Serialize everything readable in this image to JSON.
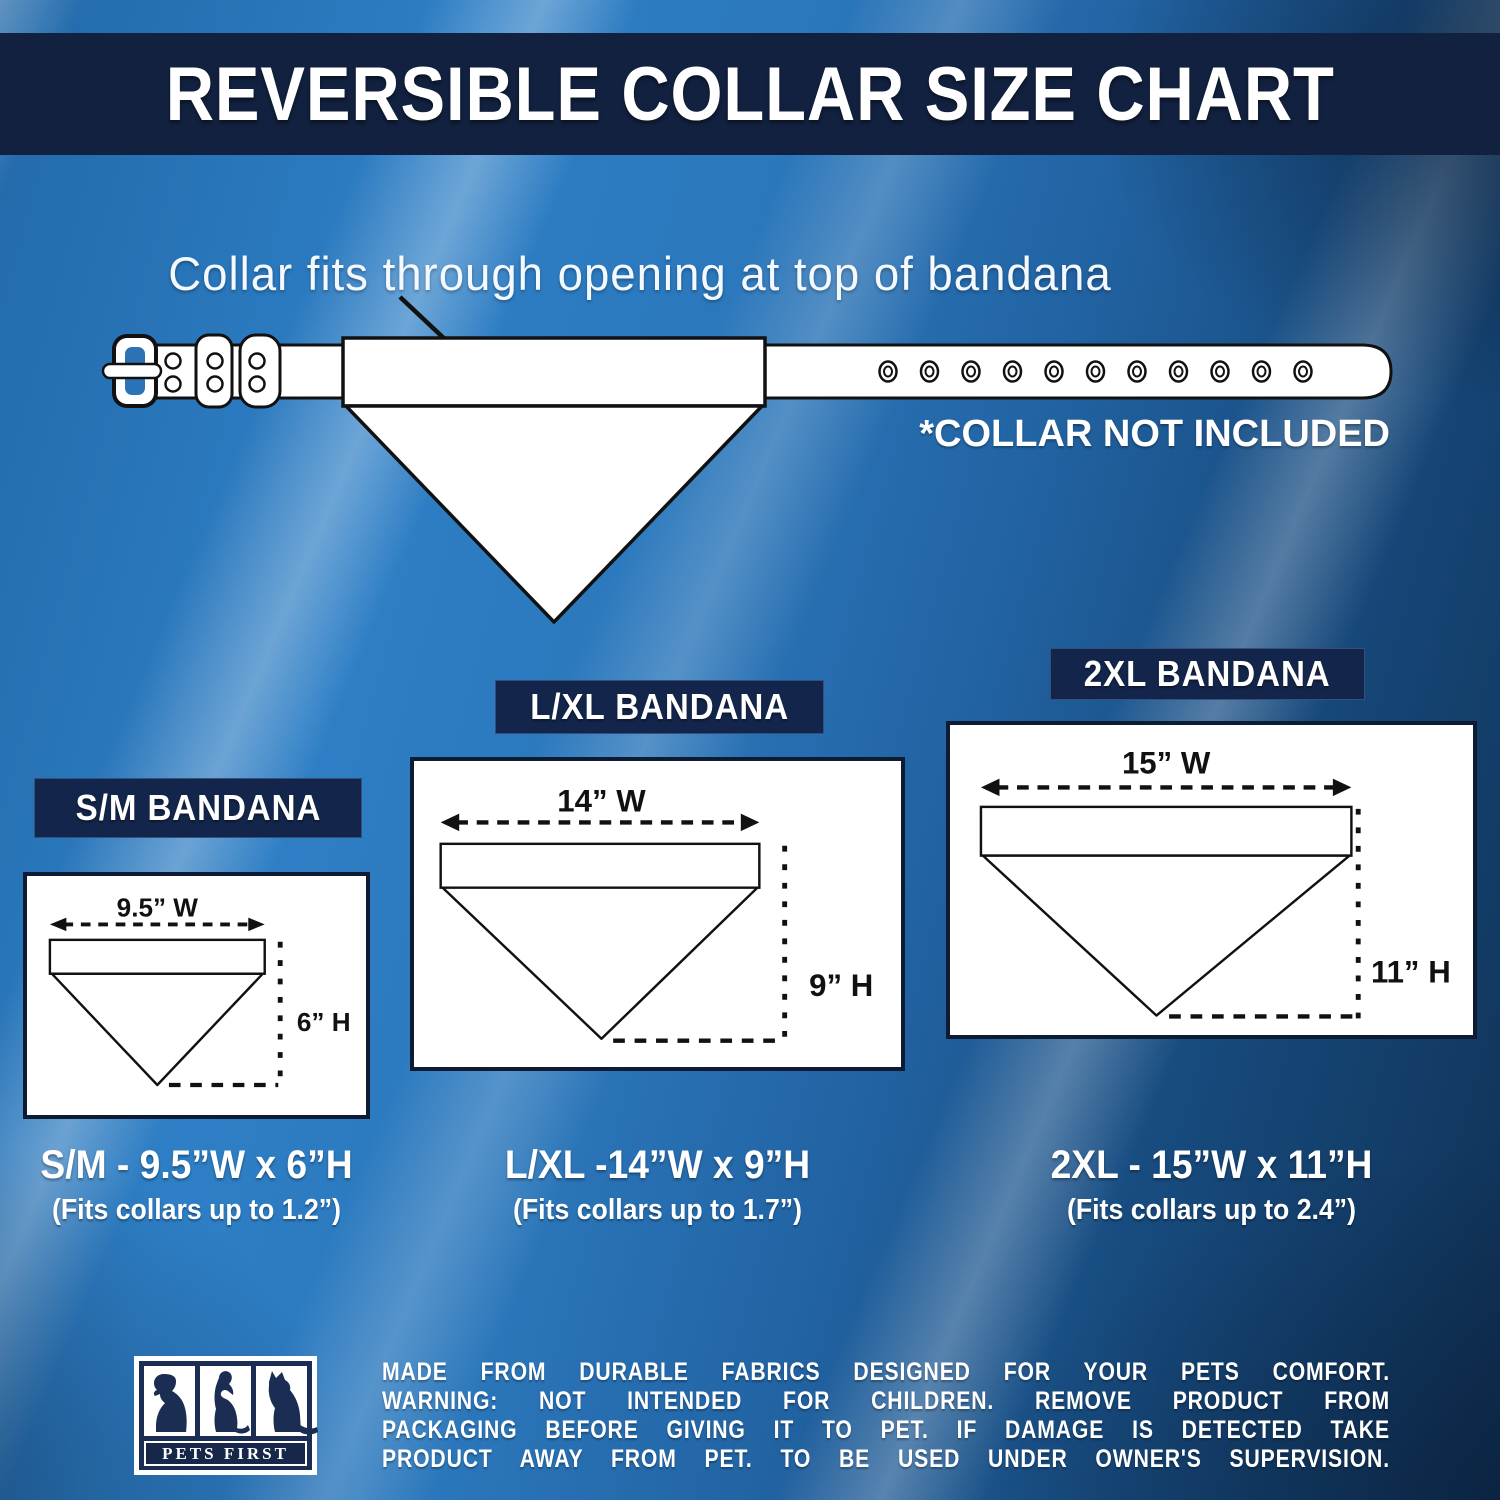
{
  "title": "REVERSIBLE COLLAR SIZE CHART",
  "collar_diagram": {
    "caption": "Collar fits through opening at top of bandana",
    "note": "*COLLAR NOT INCLUDED",
    "eyelet_count": 11
  },
  "panels": [
    {
      "header": "S/M BANDANA",
      "width_label": "9.5” W",
      "height_label": "6” H",
      "caption": "S/M - 9.5”W x 6”H",
      "fit_note": "(Fits collars up to 1.2”)"
    },
    {
      "header": "L/XL BANDANA",
      "width_label": "14” W",
      "height_label": "9” H",
      "caption": "L/XL -14”W x 9”H",
      "fit_note": "(Fits collars up to 1.7”)"
    },
    {
      "header": "2XL BANDANA",
      "width_label": "15” W",
      "height_label": "11” H",
      "caption": "2XL - 15”W x 11”H",
      "fit_note": "(Fits collars up to 2.4”)"
    }
  ],
  "footer": {
    "logo_text": "PETS FIRST",
    "warning_lines": [
      "MADE FROM DURABLE FABRICS DESIGNED FOR YOUR PETS COMFORT.",
      "WARNING: NOT INTENDED FOR CHILDREN. REMOVE PRODUCT FROM",
      "PACKAGING BEFORE GIVING IT TO PET. IF DAMAGE IS DETECTED TAKE",
      "PRODUCT AWAY FROM PET. TO BE USED UNDER OWNER'S SUPERVISION."
    ]
  },
  "colors": {
    "background_blue": "#2e7fc6",
    "dark_navy": "#12213f",
    "panel_white": "#ffffff",
    "line_black": "#111111"
  }
}
